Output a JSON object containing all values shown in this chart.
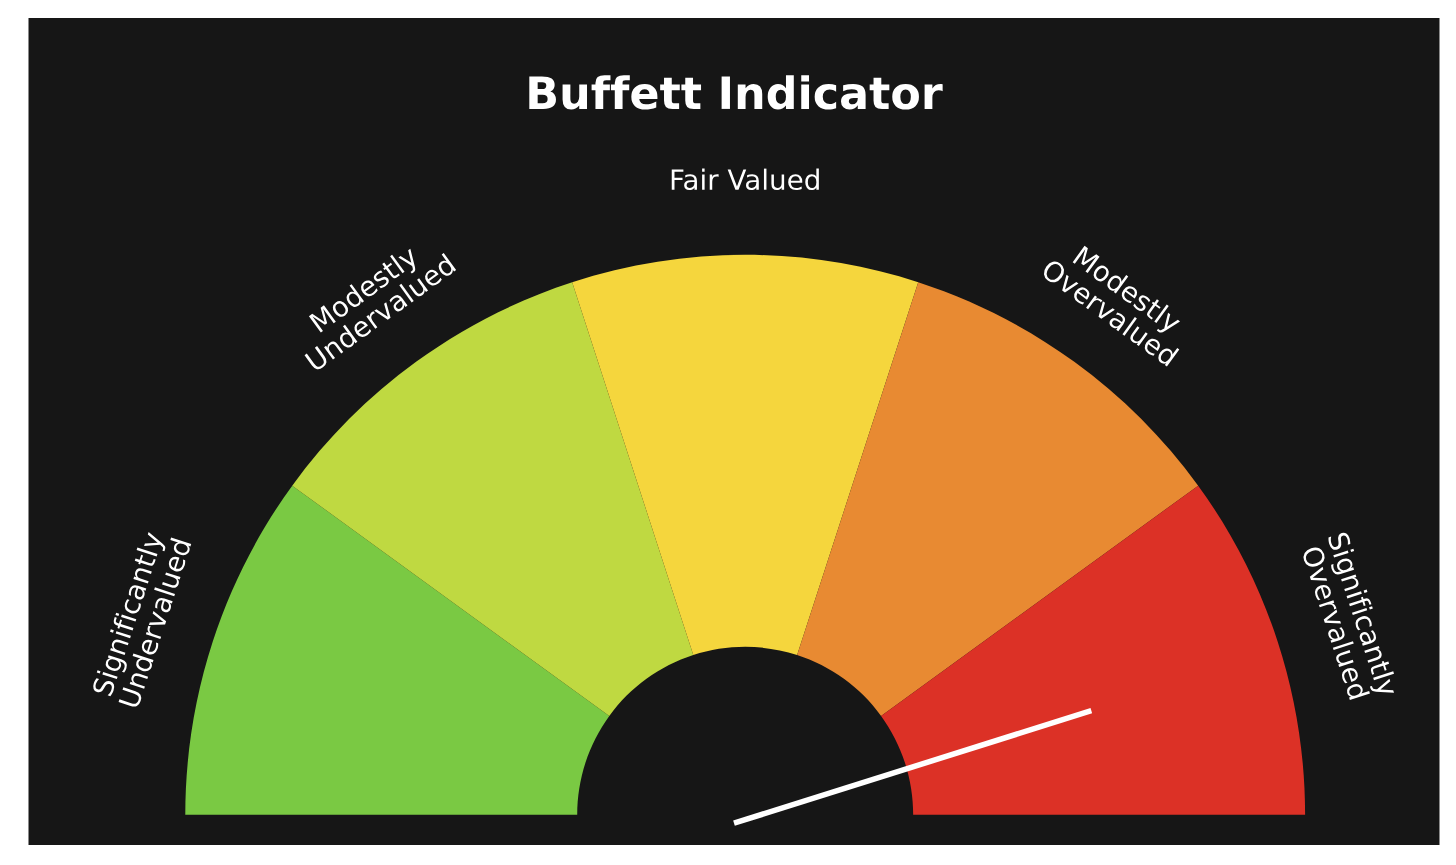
{
  "chart_data": {
    "type": "donut",
    "title": "Buffett Indicator",
    "categories": [
      "Significantly\nUndervalued",
      "Modestly\nUndervalued",
      "Fair Valued",
      "Modestly\nOvervalued",
      "Significantly\nOvervalued"
    ],
    "values": [
      20,
      20,
      20,
      20,
      20
    ],
    "colors": [
      "#7ac943",
      "#bfd941",
      "#f5d63d",
      "#e88a32",
      "#dc3126"
    ],
    "needle": "Significantly\nOvervalued"
  }
}
